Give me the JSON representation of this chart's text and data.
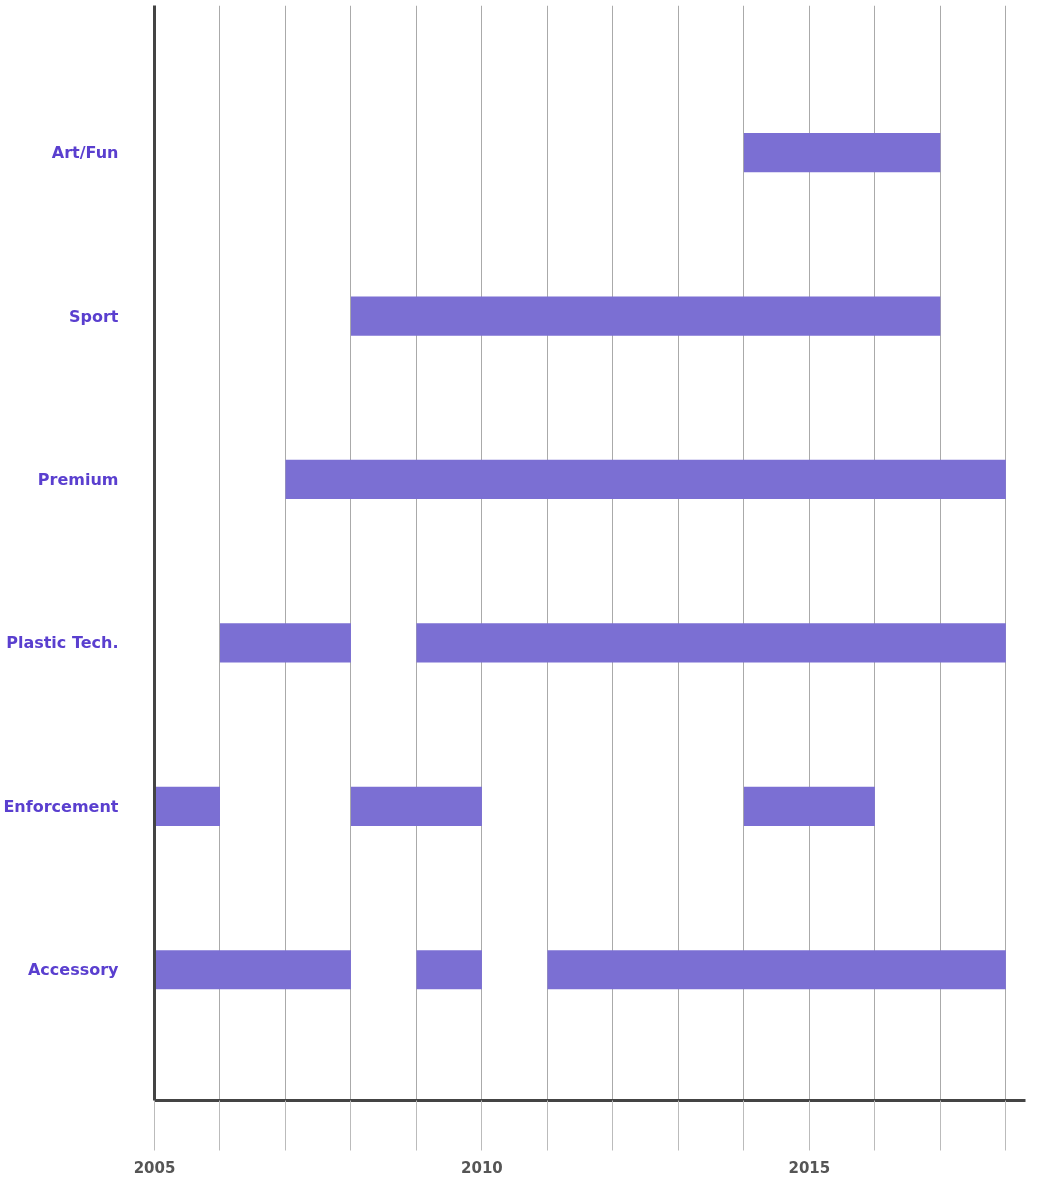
{
  "chart_data": {
    "type": "bar",
    "orientation": "horizontal",
    "categories": [
      "Art/Fun",
      "Sport",
      "Premium",
      "Plastic Tech.",
      "Enforcement",
      "Accessory"
    ],
    "series": [
      {
        "color": "#7b6fd3",
        "base": [
          2014,
          2008,
          2007,
          2006,
          2005,
          2005
        ],
        "values": [
          3,
          9,
          11,
          2,
          1,
          3
        ]
      },
      {
        "color": "#7b6fd3",
        "base": [
          null,
          null,
          null,
          2009,
          2008,
          2009
        ],
        "values": [
          null,
          null,
          null,
          9,
          2,
          1
        ]
      },
      {
        "color": "#7b6fd3",
        "base": [
          null,
          null,
          null,
          null,
          2014,
          2011
        ],
        "values": [
          null,
          null,
          null,
          null,
          2,
          7
        ]
      }
    ],
    "xlim": [
      2005,
      2018.3
    ],
    "xticks": [
      2005,
      {
        "value": 2006,
        "label": null
      },
      {
        "value": 2007,
        "label": null
      },
      {
        "value": 2008,
        "label": null
      },
      {
        "value": 2009,
        "label": null
      },
      2010,
      {
        "value": 2011,
        "label": null
      },
      {
        "value": 2012,
        "label": null
      },
      {
        "value": 2013,
        "label": null
      },
      {
        "value": 2014,
        "label": null
      },
      2015,
      {
        "value": 2016,
        "label": null
      },
      {
        "value": 2017,
        "label": null
      },
      {
        "value": 2018,
        "label": null
      }
    ],
    "grid": "x"
  }
}
